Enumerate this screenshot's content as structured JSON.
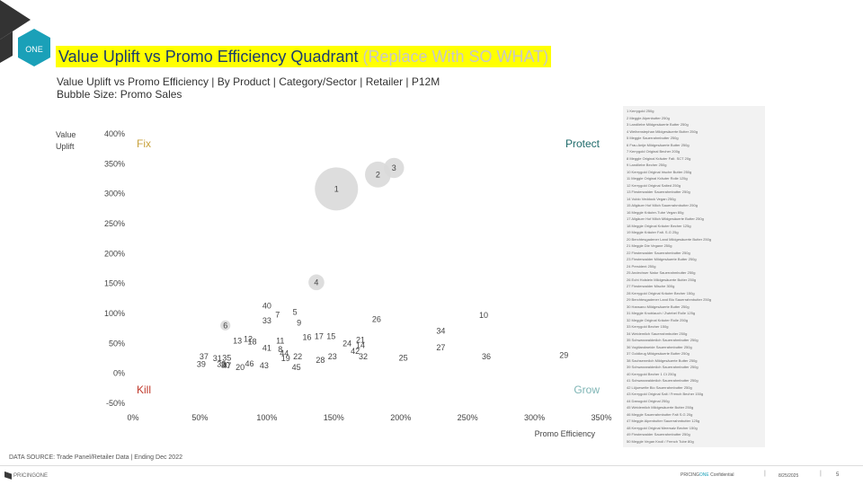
{
  "header": {
    "title": "Value Uplift vs Promo Efficiency Quadrant",
    "title_so_what": " (Replace With SO WHAT)",
    "subtitle": "Value Uplift vs Promo Efficiency | By Product | Category/Sector | Retailer | P12M",
    "bubble_size": "Bubble Size: Promo Sales",
    "logo_text": "ONE"
  },
  "chart_data": {
    "type": "scatter",
    "xlabel": "Promo Efficiency",
    "ylabel": "Value Uplift",
    "xlim": [
      0,
      3.5
    ],
    "ylim": [
      -0.5,
      4.0
    ],
    "x_ticks": [
      "0%",
      "50%",
      "100%",
      "150%",
      "200%",
      "250%",
      "300%",
      "350%"
    ],
    "y_ticks": [
      "400%",
      "350%",
      "300%",
      "250%",
      "200%",
      "150%",
      "100%",
      "50%",
      "0%",
      "-50%"
    ],
    "quadrants": {
      "top_left": "Fix",
      "top_right": "Protect",
      "bottom_left": "Kill",
      "bottom_right": "Grow"
    },
    "grid": false,
    "points": [
      {
        "id": "1",
        "x": 1.52,
        "y": 3.08,
        "size": 30
      },
      {
        "id": "2",
        "x": 1.83,
        "y": 3.32,
        "size": 18
      },
      {
        "id": "3",
        "x": 1.95,
        "y": 3.43,
        "size": 14
      },
      {
        "id": "4",
        "x": 1.37,
        "y": 1.52,
        "size": 11
      },
      {
        "id": "5",
        "x": 1.21,
        "y": 1.02,
        "size": 0
      },
      {
        "id": "6",
        "x": 0.69,
        "y": 0.8,
        "size": 7
      },
      {
        "id": "7",
        "x": 1.08,
        "y": 0.98,
        "size": 0
      },
      {
        "id": "8",
        "x": 1.1,
        "y": 0.4,
        "size": 0
      },
      {
        "id": "9",
        "x": 1.24,
        "y": 0.84,
        "size": 0
      },
      {
        "id": "10",
        "x": 2.62,
        "y": 0.97,
        "size": 0
      },
      {
        "id": "11",
        "x": 1.1,
        "y": 0.54,
        "size": 0
      },
      {
        "id": "12",
        "x": 0.86,
        "y": 0.57,
        "size": 0
      },
      {
        "id": "13",
        "x": 0.78,
        "y": 0.54,
        "size": 0
      },
      {
        "id": "14",
        "x": 1.7,
        "y": 0.47,
        "size": 0
      },
      {
        "id": "15",
        "x": 1.48,
        "y": 0.62,
        "size": 0
      },
      {
        "id": "16",
        "x": 1.3,
        "y": 0.6,
        "size": 0
      },
      {
        "id": "17",
        "x": 1.39,
        "y": 0.62,
        "size": 0
      },
      {
        "id": "18",
        "x": 0.89,
        "y": 0.53,
        "size": 0
      },
      {
        "id": "19",
        "x": 1.14,
        "y": 0.25,
        "size": 0
      },
      {
        "id": "20",
        "x": 0.8,
        "y": 0.1,
        "size": 0
      },
      {
        "id": "21",
        "x": 1.7,
        "y": 0.56,
        "size": 0
      },
      {
        "id": "22",
        "x": 1.23,
        "y": 0.28,
        "size": 0
      },
      {
        "id": "23",
        "x": 1.49,
        "y": 0.28,
        "size": 0
      },
      {
        "id": "24",
        "x": 1.6,
        "y": 0.5,
        "size": 0
      },
      {
        "id": "25",
        "x": 2.02,
        "y": 0.26,
        "size": 0
      },
      {
        "id": "26",
        "x": 1.82,
        "y": 0.9,
        "size": 0
      },
      {
        "id": "27",
        "x": 2.3,
        "y": 0.43,
        "size": 0
      },
      {
        "id": "28",
        "x": 1.4,
        "y": 0.22,
        "size": 0
      },
      {
        "id": "29",
        "x": 3.22,
        "y": 0.3,
        "size": 0
      },
      {
        "id": "30",
        "x": 0.69,
        "y": 0.14,
        "size": 0
      },
      {
        "id": "31",
        "x": 0.63,
        "y": 0.25,
        "size": 0
      },
      {
        "id": "32",
        "x": 1.72,
        "y": 0.28,
        "size": 0
      },
      {
        "id": "33",
        "x": 1.0,
        "y": 0.88,
        "size": 0
      },
      {
        "id": "34",
        "x": 2.3,
        "y": 0.71,
        "size": 0
      },
      {
        "id": "35",
        "x": 0.7,
        "y": 0.26,
        "size": 0
      },
      {
        "id": "36",
        "x": 2.64,
        "y": 0.28,
        "size": 0
      },
      {
        "id": "37",
        "x": 0.53,
        "y": 0.28,
        "size": 0
      },
      {
        "id": "38",
        "x": 0.66,
        "y": 0.15,
        "size": 0
      },
      {
        "id": "39",
        "x": 0.51,
        "y": 0.15,
        "size": 0
      },
      {
        "id": "40",
        "x": 1.0,
        "y": 1.13,
        "size": 0
      },
      {
        "id": "41",
        "x": 1.0,
        "y": 0.42,
        "size": 0
      },
      {
        "id": "42",
        "x": 1.66,
        "y": 0.37,
        "size": 0
      },
      {
        "id": "43",
        "x": 0.98,
        "y": 0.13,
        "size": 0
      },
      {
        "id": "44",
        "x": 1.13,
        "y": 0.33,
        "size": 0
      },
      {
        "id": "45",
        "x": 1.22,
        "y": 0.1,
        "size": 0
      },
      {
        "id": "46",
        "x": 0.87,
        "y": 0.16,
        "size": 0
      },
      {
        "id": "47",
        "x": 0.7,
        "y": 0.13,
        "size": 0
      }
    ]
  },
  "legend": {
    "items": [
      "1  Kerrygold 250g",
      "2  Meggle Alpenbutter 250g",
      "3  Landliebe Mildgesäuerte Butter 250g",
      "4  Weihenstephan Mildgesäuerte Butter 250g",
      "5  Meggle Sauerrahmbutter 250g",
      "6  Frau Antje Mildgesäuerte Butter 250g",
      "7  Kerrygold Original Becher 200g",
      "8  Meggle Original Kräuter Falt. SCT 20g",
      "9  Landliebe Becher 250g",
      "10  Kerrygold Original Irische Butter 250g",
      "11  Meggle Original Kräuter Rolle 125g",
      "12  Kerrygold Original Salted 250g",
      "13  Finsterwalder Sauerrahmbutter 250g",
      "14  Vuldo Veddock Vegan 250g",
      "15  Allgäuer Hof Milch Sauerrahmbutter 250g",
      "16  Meggle Kräuter-Tube Vegan 80g",
      "17  Allgäuer Hof Milch Mildgesäuerte Butter 250g",
      "18  Meggle Original Kräuter Becher 125g",
      "19  Meggle Kräuter Falt. S.G 25g",
      "20  Berchtesgadener Land Mildgesäuerte Butter 250g",
      "21  Meggle Die Vegane 250g",
      "22  Finsterwalder Sauerrahmbutter 250g",
      "23  Finsterwalder Mildgesäuerte Butter 250g",
      "24  President 250g",
      "25  Andechser Natur Sauerrahmbutter 250g",
      "26  Echt Holstein Mildgesäuerte Butter 250g",
      "27  Finsterwalder Mische 300g",
      "28  Kerrygold Original Kräuter Becher 150g",
      "29  Berchtesgadener Land Bio Sauerrahmbutter 250g",
      "30  Hansano Mildgesäuerte Butter 250g",
      "31  Meggle Knoblauch / Zwiebel Rolle 125g",
      "32  Meggle Original Kräuter Rolle 250g",
      "33  Kerrygold Becher 150g",
      "34  Weidemilch Sauerrahmbutter 250g",
      "35  Schwarzwaldmilch Sauerrahmbutter 250g",
      "36  Vogtlandweide Sauerrahmbutter 250g",
      "37  Goldkrug Mildgesäuerte Butter 250g",
      "38  Sachsenmilch Mildgesäuerte Butter 250g",
      "39  Schwarzwaldmilch Sauerrahmbutter 250g",
      "40  Kerrygold Becher 1 Ct 250g",
      "41  Schwarzwaldmilch Sauerrahmbutter 250g",
      "42  Lüjuewelte Bio Sauerrahmbutter 250g",
      "43  Kerrygold Original Salt / French Becher 150g",
      "44  Danugold Original 250g",
      "45  Weidemilch Mildgesäuerte Butter 250g",
      "46  Meggle Sauerrahmbutter Falt S.G 20g",
      "47  Meggle Alpenbutter Sauerrahmbutter 125g",
      "48  Kerrygold Original Meersalz Becher 150g",
      "49  Finsterwalder Sauerrahmbutter 250g",
      "50  Meggle Vegan Knoll / French Tube 80g"
    ]
  },
  "footer": {
    "source": "DATA SOURCE: Trade Panel/Retailer Data | Ending Dec 2022",
    "brand": "PRICINGONE",
    "confidential_prefix": "PRICING",
    "confidential_one": "ONE",
    "confidential_suffix": " Confidential",
    "sep": "|",
    "date": "8/25/2025",
    "page": "5"
  },
  "colors": {
    "fix": "#c8a23c",
    "protect": "#1f6b6b",
    "kill": "#c0392b",
    "grow": "#7fb5b5",
    "bubble": "#d9d9d9",
    "title_highlight": "#ffff00"
  }
}
